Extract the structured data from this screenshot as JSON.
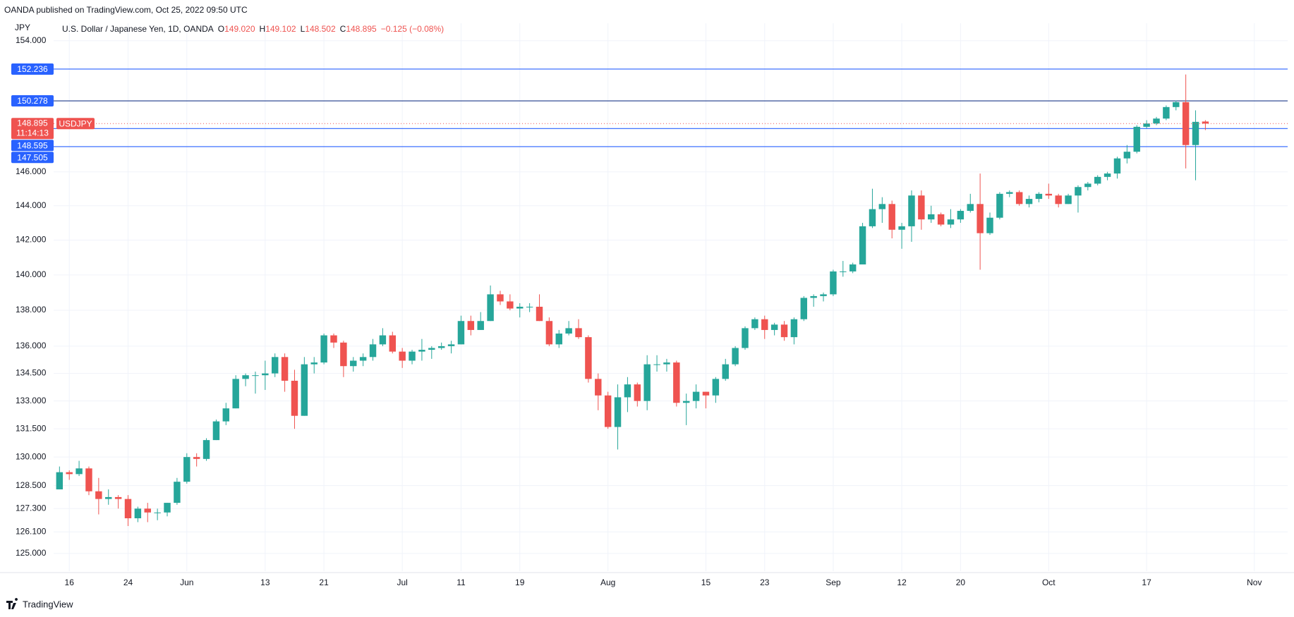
{
  "header": {
    "published": "OANDA published on TradingView.com, Oct 25, 2022 09:50 UTC"
  },
  "footer": {
    "brand": "TradingView"
  },
  "chart_data": {
    "type": "candlestick",
    "title": "U.S. Dollar / Japanese Yen, 1D, OANDA",
    "currency": "JPY",
    "symbol": "USDJPY",
    "ohlc_prefixes": [
      "O",
      "H",
      "L",
      "C"
    ],
    "ohlc_labels": [
      "149.020",
      "149.102",
      "148.502",
      "148.895"
    ],
    "change_label": "−0.125 (−0.08%)",
    "up_color": "#26a69a",
    "down_color": "#ef5350",
    "open": [
      128.3,
      129.2,
      129.1,
      129.4,
      128.2,
      127.8,
      127.9,
      127.8,
      126.8,
      127.3,
      127.1,
      127.1,
      127.6,
      128.7,
      130.0,
      129.9,
      130.9,
      131.9,
      132.6,
      134.2,
      134.4,
      134.4,
      134.5,
      135.4,
      134.1,
      132.2,
      135.0,
      135.1,
      136.6,
      136.2,
      134.9,
      135.2,
      135.4,
      136.1,
      136.6,
      135.7,
      135.2,
      135.7,
      135.8,
      135.9,
      136.0,
      136.1,
      137.4,
      136.9,
      137.4,
      138.9,
      138.5,
      138.1,
      138.2,
      138.2,
      137.4,
      136.1,
      136.7,
      137.0,
      136.5,
      134.2,
      133.3,
      131.6,
      133.2,
      133.9,
      133.0,
      135.0,
      135.0,
      135.1,
      132.9,
      133.0,
      133.5,
      133.3,
      134.2,
      135.0,
      135.9,
      137.0,
      137.5,
      136.9,
      137.2,
      136.5,
      137.5,
      138.7,
      138.8,
      138.9,
      140.2,
      140.2,
      140.6,
      142.8,
      143.8,
      144.1,
      142.6,
      142.8,
      144.6,
      143.2,
      143.5,
      142.9,
      143.2,
      143.7,
      144.1,
      142.4,
      143.3,
      144.7,
      144.8,
      144.1,
      144.4,
      144.7,
      144.6,
      144.1,
      144.6,
      145.1,
      145.3,
      145.7,
      145.9,
      146.8,
      147.2,
      148.7,
      148.9,
      149.2,
      149.9,
      150.2,
      147.6,
      149.02
    ],
    "high": [
      129.5,
      129.3,
      129.8,
      129.5,
      128.9,
      128.3,
      128.0,
      128.0,
      127.4,
      127.6,
      127.3,
      127.6,
      128.9,
      130.2,
      130.2,
      131.0,
      132.0,
      132.9,
      134.4,
      134.5,
      134.6,
      135.2,
      135.6,
      135.6,
      134.7,
      135.4,
      135.4,
      136.7,
      136.7,
      136.3,
      135.4,
      135.6,
      136.4,
      137.0,
      136.8,
      135.9,
      135.8,
      136.4,
      136.0,
      136.2,
      136.3,
      137.7,
      137.7,
      137.9,
      139.4,
      139.1,
      138.9,
      138.4,
      138.4,
      138.9,
      137.6,
      136.9,
      137.4,
      137.5,
      136.6,
      134.5,
      133.5,
      133.9,
      134.3,
      134.0,
      135.5,
      135.5,
      135.3,
      135.2,
      133.4,
      133.9,
      133.5,
      134.3,
      135.3,
      136.0,
      137.1,
      137.6,
      137.7,
      137.3,
      137.4,
      137.6,
      138.8,
      138.9,
      139.0,
      140.3,
      140.8,
      140.7,
      143.0,
      145.0,
      144.5,
      144.3,
      143.0,
      144.9,
      144.9,
      144.0,
      143.6,
      143.8,
      143.8,
      144.7,
      145.9,
      143.6,
      144.8,
      144.9,
      144.9,
      144.6,
      144.8,
      145.3,
      144.7,
      144.7,
      145.2,
      145.4,
      145.8,
      146.0,
      146.9,
      147.6,
      148.8,
      149.1,
      149.3,
      150.0,
      150.3,
      151.9,
      149.7,
      149.102
    ],
    "low": [
      128.3,
      128.8,
      129.0,
      128.0,
      127.0,
      127.5,
      127.3,
      126.4,
      126.6,
      126.6,
      126.7,
      126.9,
      127.5,
      128.6,
      129.5,
      129.8,
      130.9,
      131.7,
      132.6,
      133.8,
      133.4,
      133.6,
      134.3,
      133.5,
      131.5,
      132.2,
      134.5,
      135.0,
      135.9,
      134.3,
      134.6,
      134.9,
      135.2,
      136.0,
      135.6,
      134.8,
      135.0,
      135.2,
      135.3,
      135.8,
      135.6,
      136.1,
      136.6,
      136.9,
      137.4,
      138.3,
      138.0,
      137.6,
      137.9,
      137.4,
      136.0,
      135.9,
      136.6,
      136.4,
      134.0,
      132.5,
      131.5,
      130.4,
      132.4,
      132.7,
      132.5,
      134.6,
      134.6,
      132.7,
      131.7,
      132.6,
      132.6,
      132.9,
      134.1,
      134.9,
      135.8,
      136.9,
      136.4,
      136.6,
      136.3,
      136.1,
      137.4,
      138.2,
      138.5,
      138.8,
      139.9,
      140.1,
      140.6,
      142.7,
      143.0,
      142.1,
      141.5,
      141.9,
      142.6,
      143.0,
      142.8,
      142.7,
      143.0,
      143.6,
      140.3,
      142.3,
      143.2,
      144.5,
      144.0,
      143.9,
      144.2,
      144.4,
      143.9,
      144.1,
      143.6,
      144.9,
      145.2,
      145.5,
      145.6,
      146.5,
      147.1,
      148.6,
      148.8,
      149.1,
      149.7,
      146.2,
      145.5,
      148.502
    ],
    "close": [
      129.2,
      129.1,
      129.4,
      128.2,
      127.8,
      127.9,
      127.8,
      126.8,
      127.3,
      127.1,
      127.1,
      127.6,
      128.7,
      130.0,
      129.9,
      130.9,
      131.9,
      132.6,
      134.2,
      134.4,
      134.4,
      134.5,
      135.4,
      134.1,
      132.2,
      135.0,
      135.1,
      136.6,
      136.2,
      134.9,
      135.2,
      135.4,
      136.1,
      136.6,
      135.7,
      135.2,
      135.7,
      135.8,
      135.9,
      136.0,
      136.1,
      137.4,
      136.9,
      137.4,
      138.9,
      138.5,
      138.1,
      138.2,
      138.2,
      137.4,
      136.1,
      136.7,
      137.0,
      136.5,
      134.2,
      133.3,
      131.6,
      133.2,
      133.9,
      133.0,
      135.0,
      135.0,
      135.1,
      132.9,
      133.0,
      133.5,
      133.3,
      134.2,
      135.0,
      135.9,
      137.0,
      137.5,
      136.9,
      137.2,
      136.5,
      137.5,
      138.7,
      138.8,
      138.9,
      140.2,
      140.2,
      140.6,
      142.8,
      143.8,
      144.1,
      142.6,
      142.8,
      144.6,
      143.2,
      143.5,
      142.9,
      143.2,
      143.7,
      144.1,
      142.4,
      143.3,
      144.7,
      144.8,
      144.1,
      144.4,
      144.7,
      144.6,
      144.1,
      144.6,
      145.1,
      145.3,
      145.7,
      145.9,
      146.8,
      147.2,
      148.7,
      148.9,
      149.2,
      149.9,
      150.2,
      147.6,
      149.0,
      148.895
    ],
    "log_scale": true,
    "ylim": [
      124.1,
      155.1
    ],
    "yticks": [
      {
        "value": 125,
        "label": "125.000"
      },
      {
        "value": 126.1,
        "label": "126.100"
      },
      {
        "value": 127.3,
        "label": "127.300"
      },
      {
        "value": 128.5,
        "label": "128.500"
      },
      {
        "value": 130,
        "label": "130.000"
      },
      {
        "value": 131.5,
        "label": "131.500"
      },
      {
        "value": 133,
        "label": "133.000"
      },
      {
        "value": 134.5,
        "label": "134.500"
      },
      {
        "value": 136,
        "label": "136.000"
      },
      {
        "value": 138,
        "label": "138.000"
      },
      {
        "value": 140,
        "label": "140.000"
      },
      {
        "value": 142,
        "label": "142.000"
      },
      {
        "value": 144,
        "label": "144.000"
      },
      {
        "value": 146,
        "label": "146.000"
      },
      {
        "value": 154,
        "label": "154.000"
      }
    ],
    "xlim": [
      -0.6,
      125.4
    ],
    "xticks": [
      {
        "value": 1,
        "label": "16"
      },
      {
        "value": 7,
        "label": "24"
      },
      {
        "value": 13,
        "label": "Jun"
      },
      {
        "value": 21,
        "label": "13"
      },
      {
        "value": 27,
        "label": "21"
      },
      {
        "value": 35,
        "label": "Jul"
      },
      {
        "value": 41,
        "label": "11"
      },
      {
        "value": 47,
        "label": "19"
      },
      {
        "value": 56,
        "label": "Aug"
      },
      {
        "value": 66,
        "label": "15"
      },
      {
        "value": 72,
        "label": "23"
      },
      {
        "value": 79,
        "label": "Sep"
      },
      {
        "value": 86,
        "label": "12"
      },
      {
        "value": 92,
        "label": "20"
      },
      {
        "value": 101,
        "label": "Oct"
      },
      {
        "value": 111,
        "label": "17"
      },
      {
        "value": 122,
        "label": "Nov"
      }
    ],
    "grid": true,
    "levels": [
      {
        "value": 152.236,
        "label": "152.236",
        "color": "#2962ff"
      },
      {
        "value": 150.278,
        "label": "150.278",
        "color": "#1e3a8a"
      },
      {
        "value": 148.595,
        "label": "148.595",
        "color": "#2962ff"
      },
      {
        "value": 147.505,
        "label": "147.505",
        "color": "#2962ff"
      }
    ],
    "last_price": {
      "value": 148.895,
      "label": "148.895",
      "countdown": "11:14:13",
      "color": "#ef5350"
    }
  }
}
